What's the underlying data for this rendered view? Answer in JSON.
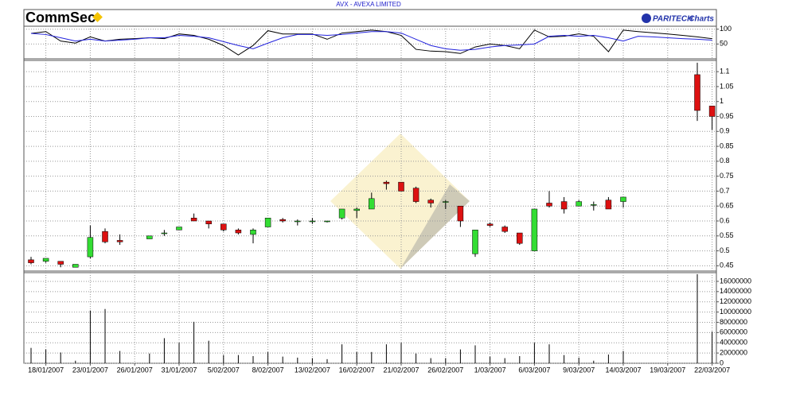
{
  "chart_data": {
    "type": "candlestick",
    "title": "AVX - AVEXA LIMITED",
    "brand_left": "CommSec",
    "brand_right": "PARITECH",
    "brand_right_suffix": "Charts",
    "categories": [
      null,
      "18/01/2007",
      null,
      null,
      "23/01/2007",
      null,
      null,
      "26/01/2007",
      null,
      null,
      "31/01/2007",
      null,
      null,
      "5/02/2007",
      null,
      null,
      "8/02/2007",
      null,
      null,
      "13/02/2007",
      null,
      null,
      "16/02/2007",
      null,
      null,
      "21/02/2007",
      null,
      null,
      "26/02/2007",
      null,
      null,
      "1/03/2007",
      null,
      null,
      "6/03/2007",
      null,
      null,
      "9/03/2007",
      null,
      null,
      "14/03/2007",
      null,
      null,
      "19/03/2007",
      null,
      null,
      "22/03/2007"
    ],
    "open": [
      0.47,
      0.465,
      0.465,
      0.445,
      0.48,
      0.565,
      0.535,
      null,
      0.54,
      0.56,
      0.57,
      0.61,
      0.6,
      0.59,
      0.57,
      0.555,
      0.58,
      0.605,
      0.6,
      0.6,
      0.6,
      0.61,
      0.635,
      0.64,
      0.73,
      0.73,
      0.71,
      0.67,
      0.665,
      0.65,
      0.49,
      0.59,
      0.58,
      0.56,
      0.5,
      0.66,
      0.665,
      0.65,
      0.655,
      0.67,
      0.665,
      null,
      null,
      null,
      null,
      1.09,
      0.985
    ],
    "high": [
      0.48,
      0.475,
      0.465,
      0.455,
      0.585,
      0.575,
      0.555,
      null,
      0.55,
      0.57,
      0.58,
      0.625,
      0.6,
      0.59,
      0.575,
      0.575,
      0.61,
      0.61,
      0.605,
      0.61,
      0.6,
      0.64,
      0.645,
      0.695,
      0.735,
      0.73,
      0.715,
      0.675,
      0.67,
      0.65,
      0.57,
      0.595,
      0.585,
      0.56,
      0.64,
      0.7,
      0.68,
      0.67,
      0.665,
      0.68,
      0.68,
      null,
      null,
      null,
      null,
      1.13,
      0.985
    ],
    "low": [
      0.455,
      0.46,
      0.445,
      0.445,
      0.475,
      0.525,
      0.52,
      null,
      0.54,
      0.55,
      0.57,
      0.6,
      0.575,
      0.565,
      0.555,
      0.525,
      0.58,
      0.595,
      0.585,
      0.59,
      0.595,
      0.605,
      0.61,
      0.64,
      0.705,
      0.7,
      0.66,
      0.645,
      0.64,
      0.58,
      0.48,
      0.58,
      0.56,
      0.52,
      0.5,
      0.645,
      0.625,
      0.65,
      0.635,
      0.64,
      0.645,
      null,
      null,
      null,
      null,
      0.935,
      0.905
    ],
    "close": [
      0.46,
      0.475,
      0.455,
      0.455,
      0.545,
      0.53,
      0.53,
      null,
      0.55,
      0.56,
      0.58,
      0.6,
      0.59,
      0.57,
      0.56,
      0.57,
      0.61,
      0.6,
      0.6,
      0.6,
      0.6,
      0.64,
      0.64,
      0.675,
      0.725,
      0.7,
      0.665,
      0.66,
      0.665,
      0.6,
      0.57,
      0.585,
      0.565,
      0.525,
      0.64,
      0.65,
      0.64,
      0.665,
      0.655,
      0.64,
      0.68,
      null,
      null,
      null,
      null,
      0.97,
      0.95
    ],
    "up_color": "#33dd33",
    "down_color": "#dd1111",
    "ylim": [
      0.435,
      1.135
    ],
    "yticks": [
      0.45,
      0.5,
      0.55,
      0.6,
      0.65,
      0.7,
      0.75,
      0.8,
      0.85,
      0.9,
      0.95,
      1,
      1.05,
      1.1
    ],
    "grid": true,
    "volume": {
      "color": "#000000",
      "ylim": [
        0,
        17700000
      ],
      "yticks": [
        0,
        2000000,
        4000000,
        6000000,
        8000000,
        10000000,
        12000000,
        14000000,
        16000000
      ],
      "values": [
        3000000,
        2700000,
        2100000,
        500000,
        10300000,
        10600000,
        2400000,
        null,
        1900000,
        4900000,
        4000000,
        8100000,
        4400000,
        1600000,
        1600000,
        1400000,
        2200000,
        1300000,
        1100000,
        1000000,
        800000,
        3700000,
        2200000,
        2200000,
        3700000,
        4000000,
        1900000,
        1000000,
        1000000,
        2700000,
        3500000,
        1300000,
        1000000,
        1400000,
        4000000,
        3700000,
        1600000,
        1100000,
        500000,
        1700000,
        2400000,
        null,
        null,
        null,
        null,
        17400000,
        6200000
      ]
    },
    "indicator": {
      "ylim": [
        0,
        110
      ],
      "yticks": [
        50,
        100
      ],
      "series": [
        {
          "color": "#000000",
          "values": [
            86,
            92,
            60,
            53,
            74,
            60,
            66,
            68,
            71,
            68,
            84,
            79,
            66,
            45,
            13,
            45,
            95,
            84,
            84,
            84,
            66,
            87,
            92,
            97,
            92,
            79,
            32,
            26,
            24,
            18,
            40,
            50,
            45,
            34,
            97,
            74,
            76,
            84,
            76,
            24,
            97,
            92,
            88,
            84,
            79,
            74,
            68
          ]
        },
        {
          "color": "#2222dd",
          "values": [
            86,
            82,
            71,
            60,
            66,
            60,
            63,
            66,
            71,
            71,
            79,
            76,
            71,
            58,
            45,
            34,
            53,
            71,
            82,
            82,
            79,
            82,
            87,
            92,
            92,
            87,
            66,
            45,
            34,
            29,
            32,
            40,
            45,
            47,
            50,
            76,
            79,
            76,
            79,
            71,
            60,
            76,
            74,
            71,
            68,
            66,
            63
          ]
        }
      ]
    }
  }
}
